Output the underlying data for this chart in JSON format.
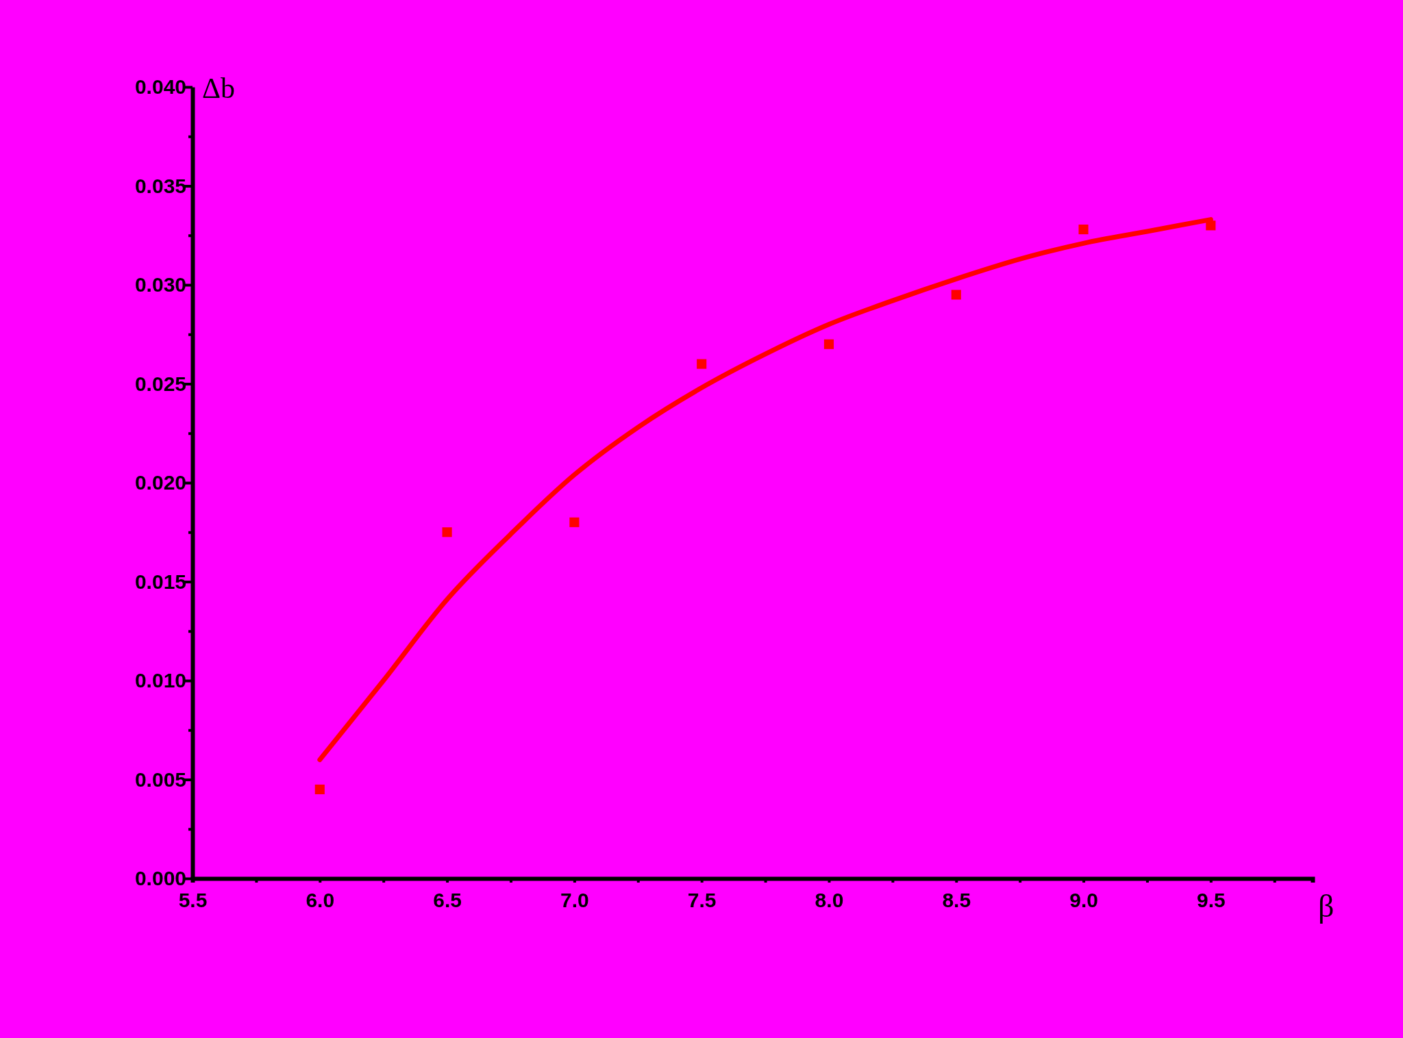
{
  "chart_data": {
    "type": "scatter",
    "xlabel": "β",
    "ylabel": "Δb",
    "xlim": [
      5.5,
      9.9
    ],
    "xticks": [
      5.5,
      {
        "value": 5.75,
        "label": null
      },
      {
        "value": 6,
        "label": "6.0"
      },
      {
        "value": 6.25,
        "label": null
      },
      6.5,
      {
        "value": 6.75,
        "label": null
      },
      {
        "value": 7,
        "label": "7.0"
      },
      {
        "value": 7.25,
        "label": null
      },
      7.5,
      {
        "value": 7.75,
        "label": null
      },
      {
        "value": 8,
        "label": "8.0"
      },
      {
        "value": 8.25,
        "label": null
      },
      8.5,
      {
        "value": 8.75,
        "label": null
      },
      {
        "value": 9,
        "label": "9.0"
      },
      {
        "value": 9.25,
        "label": null
      },
      9.5,
      {
        "value": 9.75,
        "label": null
      }
    ],
    "ylim": [
      0,
      0.04
    ],
    "yticks": [
      {
        "value": 0,
        "label": "0.000"
      },
      {
        "value": 0.0025,
        "label": null
      },
      {
        "value": 0.005,
        "label": "0.005"
      },
      {
        "value": 0.0075,
        "label": null
      },
      {
        "value": 0.01,
        "label": "0.010"
      },
      {
        "value": 0.0125,
        "label": null
      },
      {
        "value": 0.015,
        "label": "0.015"
      },
      {
        "value": 0.0175,
        "label": null
      },
      {
        "value": 0.02,
        "label": "0.020"
      },
      {
        "value": 0.0225,
        "label": null
      },
      {
        "value": 0.025,
        "label": "0.025"
      },
      {
        "value": 0.0275,
        "label": null
      },
      {
        "value": 0.03,
        "label": "0.030"
      },
      {
        "value": 0.0325,
        "label": null
      },
      {
        "value": 0.035,
        "label": "0.035"
      },
      {
        "value": 0.0375,
        "label": null
      },
      {
        "value": 0.04,
        "label": "0.040"
      }
    ],
    "grid": false,
    "legend": false,
    "series": [
      {
        "type": "scatter",
        "marker": "square",
        "color": "#ff0000",
        "x": [
          6.0,
          6.5,
          7.0,
          7.5,
          8.0,
          8.5,
          9.0,
          9.5
        ],
        "values": [
          0.0045,
          0.0175,
          0.018,
          0.026,
          0.027,
          0.0295,
          0.0328,
          0.033
        ]
      },
      {
        "type": "line",
        "marker": "none",
        "color": "#ff0000",
        "x": [
          6.0,
          6.25,
          6.5,
          6.75,
          7.0,
          7.25,
          7.5,
          7.75,
          8.0,
          8.25,
          8.5,
          8.75,
          9.0,
          9.25,
          9.5
        ],
        "values": [
          0.006,
          0.01,
          0.0141,
          0.0174,
          0.0204,
          0.0228,
          0.0248,
          0.0265,
          0.028,
          0.0292,
          0.0303,
          0.0313,
          0.0321,
          0.0327,
          0.0333
        ]
      }
    ]
  }
}
